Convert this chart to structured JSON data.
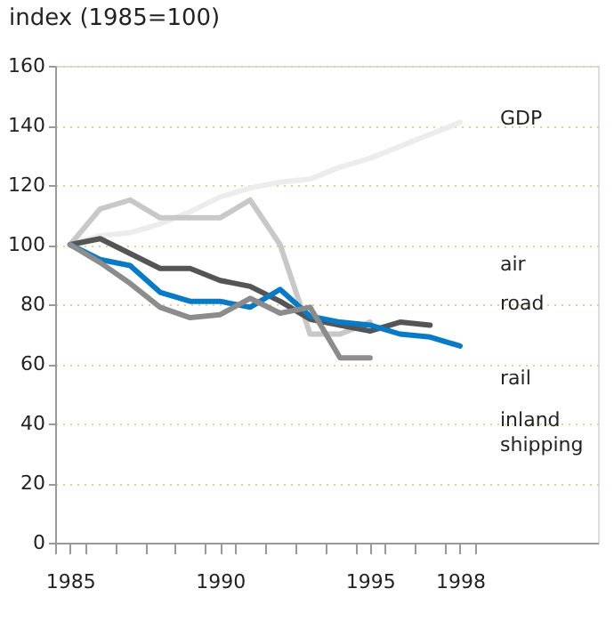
{
  "chart_data": {
    "type": "line",
    "title": "index (1985=100)",
    "x": [
      1985,
      1986,
      1987,
      1988,
      1989,
      1990,
      1991,
      1992,
      1993,
      1994,
      1995,
      1996,
      1997,
      1998
    ],
    "series": [
      {
        "name": "GDP",
        "color": "#ececec",
        "values": [
          100,
          103,
          104,
          107,
          111,
          116,
          119,
          121,
          122,
          126,
          129,
          133,
          137,
          141
        ]
      },
      {
        "name": "air",
        "color": "#c8c8c8",
        "values": [
          100,
          112,
          115,
          109,
          109,
          109,
          115,
          100,
          70,
          70,
          74,
          null,
          null,
          null
        ]
      },
      {
        "name": "road",
        "color": "#555555",
        "values": [
          100,
          102,
          97,
          92,
          92,
          88,
          86,
          81,
          75,
          73,
          71,
          74,
          73,
          null
        ]
      },
      {
        "name": "rail",
        "color": "#0a7ac4",
        "values": [
          100,
          95,
          93,
          84,
          81,
          81,
          79,
          85,
          76,
          74,
          73,
          70,
          69,
          66
        ]
      },
      {
        "name": "inland shipping",
        "color": "#8c8c8c",
        "values": [
          100,
          94,
          87,
          79,
          75.5,
          76.5,
          82,
          77,
          79,
          62,
          62,
          null,
          null,
          null
        ]
      }
    ],
    "xlim": [
      1984.5,
      2002.6
    ],
    "xticks": [
      {
        "value": 1984.5,
        "label": null
      },
      {
        "value": 1985,
        "label": "1985"
      },
      {
        "value": 1985.5,
        "label": null
      },
      {
        "value": 1986.5,
        "label": null
      },
      {
        "value": 1987.5,
        "label": null
      },
      {
        "value": 1988.5,
        "label": null
      },
      {
        "value": 1989.5,
        "label": null
      },
      {
        "value": 1990,
        "label": "1990"
      },
      {
        "value": 1990.5,
        "label": null
      },
      {
        "value": 1991.5,
        "label": null
      },
      {
        "value": 1992.5,
        "label": null
      },
      {
        "value": 1993.5,
        "label": null
      },
      {
        "value": 1994.5,
        "label": null
      },
      {
        "value": 1995,
        "label": "1995"
      },
      {
        "value": 1995.5,
        "label": null
      },
      {
        "value": 1996.5,
        "label": null
      },
      {
        "value": 1997.5,
        "label": null
      },
      {
        "value": 1998,
        "label": "1998"
      },
      {
        "value": 1998.5,
        "label": null
      }
    ],
    "ylim": [
      0,
      160
    ],
    "yticks": [
      0,
      20,
      40,
      60,
      80,
      100,
      120,
      140,
      160
    ],
    "grid": "y",
    "marker": "none",
    "line_style": "solid"
  }
}
